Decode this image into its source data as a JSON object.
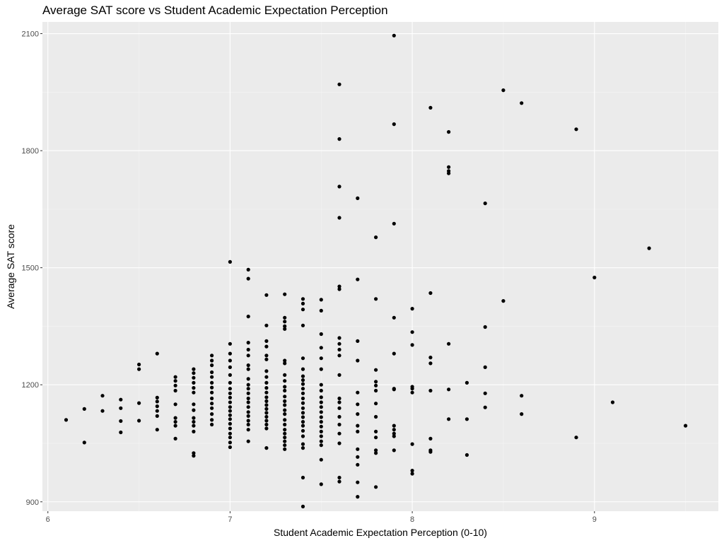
{
  "chart_data": {
    "type": "scatter",
    "title": "Average SAT score vs Student Academic Expectation Perception",
    "xlabel": "Student Academic Expectation Perception (0-10)",
    "ylabel": "Average SAT score",
    "xlim": [
      5.97,
      9.68
    ],
    "ylim": [
      876,
      2130
    ],
    "x_ticks": [
      6,
      7,
      8,
      9
    ],
    "x_tick_labels": [
      "6",
      "7",
      "8",
      "9"
    ],
    "y_ticks": [
      900,
      1200,
      1500,
      1800,
      2100
    ],
    "y_tick_labels": [
      "900",
      "1200",
      "1500",
      "1800",
      "2100"
    ],
    "grid": true,
    "legend": "none",
    "colors": {
      "panel_background": "#ebebeb",
      "grid_major": "#ffffff",
      "grid_minor": "#f5f5f5",
      "point": "#000000"
    },
    "points": [
      [
        6.1,
        1110
      ],
      [
        6.2,
        1138
      ],
      [
        6.2,
        1052
      ],
      [
        6.3,
        1172
      ],
      [
        6.3,
        1133
      ],
      [
        6.4,
        1162
      ],
      [
        6.4,
        1140
      ],
      [
        6.4,
        1107
      ],
      [
        6.4,
        1078
      ],
      [
        6.5,
        1252
      ],
      [
        6.5,
        1240
      ],
      [
        6.5,
        1153
      ],
      [
        6.5,
        1108
      ],
      [
        6.6,
        1280
      ],
      [
        6.6,
        1167
      ],
      [
        6.6,
        1157
      ],
      [
        6.6,
        1145
      ],
      [
        6.6,
        1133
      ],
      [
        6.6,
        1120
      ],
      [
        6.6,
        1085
      ],
      [
        6.7,
        1220
      ],
      [
        6.7,
        1210
      ],
      [
        6.7,
        1198
      ],
      [
        6.7,
        1185
      ],
      [
        6.7,
        1150
      ],
      [
        6.7,
        1115
      ],
      [
        6.7,
        1105
      ],
      [
        6.7,
        1095
      ],
      [
        6.7,
        1062
      ],
      [
        6.8,
        1240
      ],
      [
        6.8,
        1230
      ],
      [
        6.8,
        1218
      ],
      [
        6.8,
        1205
      ],
      [
        6.8,
        1192
      ],
      [
        6.8,
        1180
      ],
      [
        6.8,
        1150
      ],
      [
        6.8,
        1135
      ],
      [
        6.8,
        1115
      ],
      [
        6.8,
        1105
      ],
      [
        6.8,
        1095
      ],
      [
        6.8,
        1080
      ],
      [
        6.8,
        1025
      ],
      [
        6.8,
        1018
      ],
      [
        6.9,
        1275
      ],
      [
        6.9,
        1262
      ],
      [
        6.9,
        1250
      ],
      [
        6.9,
        1232
      ],
      [
        6.9,
        1220
      ],
      [
        6.9,
        1205
      ],
      [
        6.9,
        1193
      ],
      [
        6.9,
        1180
      ],
      [
        6.9,
        1165
      ],
      [
        6.9,
        1152
      ],
      [
        6.9,
        1140
      ],
      [
        6.9,
        1125
      ],
      [
        6.9,
        1110
      ],
      [
        6.9,
        1098
      ],
      [
        7.0,
        1515
      ],
      [
        7.0,
        1305
      ],
      [
        7.0,
        1280
      ],
      [
        7.0,
        1262
      ],
      [
        7.0,
        1245
      ],
      [
        7.0,
        1225
      ],
      [
        7.0,
        1205
      ],
      [
        7.0,
        1190
      ],
      [
        7.0,
        1178
      ],
      [
        7.0,
        1167
      ],
      [
        7.0,
        1155
      ],
      [
        7.0,
        1143
      ],
      [
        7.0,
        1133
      ],
      [
        7.0,
        1122
      ],
      [
        7.0,
        1112
      ],
      [
        7.0,
        1100
      ],
      [
        7.0,
        1088
      ],
      [
        7.0,
        1075
      ],
      [
        7.0,
        1065
      ],
      [
        7.0,
        1052
      ],
      [
        7.0,
        1040
      ],
      [
        7.1,
        1495
      ],
      [
        7.1,
        1472
      ],
      [
        7.1,
        1375
      ],
      [
        7.1,
        1308
      ],
      [
        7.1,
        1290
      ],
      [
        7.1,
        1275
      ],
      [
        7.1,
        1250
      ],
      [
        7.1,
        1240
      ],
      [
        7.1,
        1215
      ],
      [
        7.1,
        1200
      ],
      [
        7.1,
        1190
      ],
      [
        7.1,
        1178
      ],
      [
        7.1,
        1165
      ],
      [
        7.1,
        1155
      ],
      [
        7.1,
        1143
      ],
      [
        7.1,
        1130
      ],
      [
        7.1,
        1120
      ],
      [
        7.1,
        1108
      ],
      [
        7.1,
        1098
      ],
      [
        7.1,
        1085
      ],
      [
        7.1,
        1055
      ],
      [
        7.2,
        1430
      ],
      [
        7.2,
        1352
      ],
      [
        7.2,
        1312
      ],
      [
        7.2,
        1298
      ],
      [
        7.2,
        1275
      ],
      [
        7.2,
        1265
      ],
      [
        7.2,
        1235
      ],
      [
        7.2,
        1220
      ],
      [
        7.2,
        1205
      ],
      [
        7.2,
        1192
      ],
      [
        7.2,
        1180
      ],
      [
        7.2,
        1168
      ],
      [
        7.2,
        1158
      ],
      [
        7.2,
        1148
      ],
      [
        7.2,
        1138
      ],
      [
        7.2,
        1128
      ],
      [
        7.2,
        1118
      ],
      [
        7.2,
        1108
      ],
      [
        7.2,
        1098
      ],
      [
        7.2,
        1088
      ],
      [
        7.2,
        1038
      ],
      [
        7.3,
        1432
      ],
      [
        7.3,
        1372
      ],
      [
        7.3,
        1362
      ],
      [
        7.3,
        1350
      ],
      [
        7.3,
        1343
      ],
      [
        7.3,
        1262
      ],
      [
        7.3,
        1255
      ],
      [
        7.3,
        1225
      ],
      [
        7.3,
        1210
      ],
      [
        7.3,
        1195
      ],
      [
        7.3,
        1185
      ],
      [
        7.3,
        1170
      ],
      [
        7.3,
        1158
      ],
      [
        7.3,
        1148
      ],
      [
        7.3,
        1135
      ],
      [
        7.3,
        1125
      ],
      [
        7.3,
        1110
      ],
      [
        7.3,
        1098
      ],
      [
        7.3,
        1085
      ],
      [
        7.3,
        1075
      ],
      [
        7.3,
        1065
      ],
      [
        7.3,
        1055
      ],
      [
        7.3,
        1045
      ],
      [
        7.3,
        1035
      ],
      [
        7.4,
        1420
      ],
      [
        7.4,
        1408
      ],
      [
        7.4,
        1393
      ],
      [
        7.4,
        1352
      ],
      [
        7.4,
        1268
      ],
      [
        7.4,
        1240
      ],
      [
        7.4,
        1222
      ],
      [
        7.4,
        1212
      ],
      [
        7.4,
        1202
      ],
      [
        7.4,
        1190
      ],
      [
        7.4,
        1178
      ],
      [
        7.4,
        1165
      ],
      [
        7.4,
        1153
      ],
      [
        7.4,
        1140
      ],
      [
        7.4,
        1128
      ],
      [
        7.4,
        1117
      ],
      [
        7.4,
        1105
      ],
      [
        7.4,
        1095
      ],
      [
        7.4,
        1082
      ],
      [
        7.4,
        1068
      ],
      [
        7.4,
        1048
      ],
      [
        7.4,
        1038
      ],
      [
        7.4,
        962
      ],
      [
        7.4,
        888
      ],
      [
        7.5,
        1418
      ],
      [
        7.5,
        1390
      ],
      [
        7.5,
        1330
      ],
      [
        7.5,
        1295
      ],
      [
        7.5,
        1268
      ],
      [
        7.5,
        1240
      ],
      [
        7.5,
        1200
      ],
      [
        7.5,
        1185
      ],
      [
        7.5,
        1168
      ],
      [
        7.5,
        1155
      ],
      [
        7.5,
        1143
      ],
      [
        7.5,
        1130
      ],
      [
        7.5,
        1117
      ],
      [
        7.5,
        1105
      ],
      [
        7.5,
        1093
      ],
      [
        7.5,
        1080
      ],
      [
        7.5,
        1068
      ],
      [
        7.5,
        1055
      ],
      [
        7.5,
        1045
      ],
      [
        7.5,
        1008
      ],
      [
        7.5,
        945
      ],
      [
        7.6,
        1970
      ],
      [
        7.6,
        1830
      ],
      [
        7.6,
        1708
      ],
      [
        7.6,
        1628
      ],
      [
        7.6,
        1452
      ],
      [
        7.6,
        1445
      ],
      [
        7.6,
        1320
      ],
      [
        7.6,
        1305
      ],
      [
        7.6,
        1290
      ],
      [
        7.6,
        1275
      ],
      [
        7.6,
        1225
      ],
      [
        7.6,
        1165
      ],
      [
        7.6,
        1155
      ],
      [
        7.6,
        1140
      ],
      [
        7.6,
        1118
      ],
      [
        7.6,
        1098
      ],
      [
        7.6,
        1075
      ],
      [
        7.6,
        1050
      ],
      [
        7.6,
        962
      ],
      [
        7.6,
        952
      ],
      [
        7.7,
        1678
      ],
      [
        7.7,
        1470
      ],
      [
        7.7,
        1312
      ],
      [
        7.7,
        1262
      ],
      [
        7.7,
        1180
      ],
      [
        7.7,
        1150
      ],
      [
        7.7,
        1125
      ],
      [
        7.7,
        1095
      ],
      [
        7.7,
        1080
      ],
      [
        7.7,
        1035
      ],
      [
        7.7,
        1015
      ],
      [
        7.7,
        995
      ],
      [
        7.7,
        950
      ],
      [
        7.7,
        913
      ],
      [
        7.8,
        1578
      ],
      [
        7.8,
        1420
      ],
      [
        7.8,
        1238
      ],
      [
        7.8,
        1208
      ],
      [
        7.8,
        1198
      ],
      [
        7.8,
        1185
      ],
      [
        7.8,
        1152
      ],
      [
        7.8,
        1118
      ],
      [
        7.8,
        1080
      ],
      [
        7.8,
        1065
      ],
      [
        7.8,
        1032
      ],
      [
        7.8,
        1025
      ],
      [
        7.8,
        938
      ],
      [
        7.9,
        2095
      ],
      [
        7.9,
        1868
      ],
      [
        7.9,
        1613
      ],
      [
        7.9,
        1372
      ],
      [
        7.9,
        1280
      ],
      [
        7.9,
        1190
      ],
      [
        7.9,
        1188
      ],
      [
        7.9,
        1095
      ],
      [
        7.9,
        1085
      ],
      [
        7.9,
        1075
      ],
      [
        7.9,
        1068
      ],
      [
        7.9,
        1032
      ],
      [
        8.0,
        1395
      ],
      [
        8.0,
        1335
      ],
      [
        8.0,
        1302
      ],
      [
        8.0,
        1195
      ],
      [
        8.0,
        1190
      ],
      [
        8.0,
        1180
      ],
      [
        8.0,
        1048
      ],
      [
        8.0,
        980
      ],
      [
        8.0,
        972
      ],
      [
        8.1,
        1910
      ],
      [
        8.1,
        1435
      ],
      [
        8.1,
        1270
      ],
      [
        8.1,
        1255
      ],
      [
        8.1,
        1185
      ],
      [
        8.1,
        1062
      ],
      [
        8.1,
        1032
      ],
      [
        8.1,
        1028
      ],
      [
        8.2,
        1848
      ],
      [
        8.2,
        1758
      ],
      [
        8.2,
        1748
      ],
      [
        8.2,
        1742
      ],
      [
        8.2,
        1305
      ],
      [
        8.2,
        1188
      ],
      [
        8.2,
        1112
      ],
      [
        8.3,
        1205
      ],
      [
        8.3,
        1112
      ],
      [
        8.3,
        1020
      ],
      [
        8.4,
        1665
      ],
      [
        8.4,
        1348
      ],
      [
        8.4,
        1245
      ],
      [
        8.4,
        1178
      ],
      [
        8.4,
        1142
      ],
      [
        8.5,
        1955
      ],
      [
        8.5,
        1415
      ],
      [
        8.6,
        1922
      ],
      [
        8.6,
        1172
      ],
      [
        8.6,
        1125
      ],
      [
        8.9,
        1855
      ],
      [
        8.9,
        1065
      ],
      [
        9.0,
        1475
      ],
      [
        9.1,
        1155
      ],
      [
        9.3,
        1550
      ],
      [
        9.5,
        1095
      ]
    ]
  }
}
